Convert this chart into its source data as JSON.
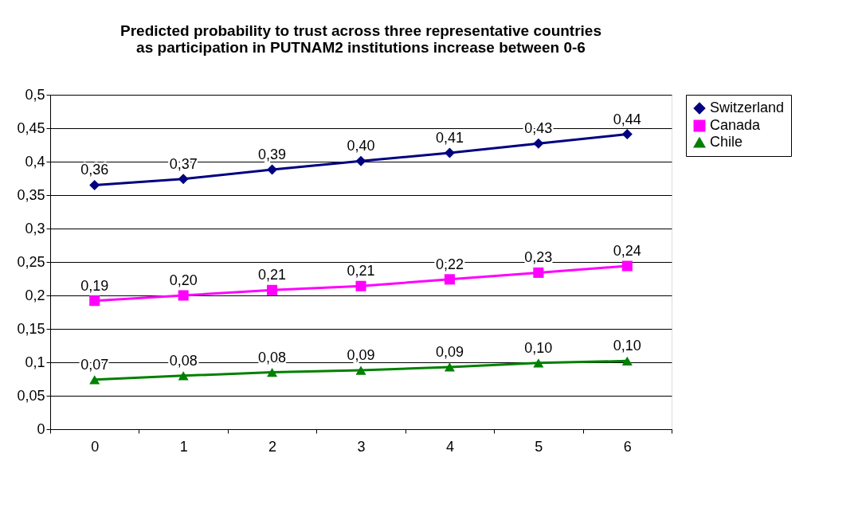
{
  "chart_data": {
    "type": "line",
    "title": "Predicted probability to trust across three representative countries\nas participation in PUTNAM2 institutions increase between 0-6",
    "categories": [
      "0",
      "1",
      "2",
      "3",
      "4",
      "5",
      "6"
    ],
    "series": [
      {
        "name": "Switzerland",
        "color": "#000080",
        "marker": "diamond",
        "values": [
          0.365,
          0.374,
          0.388,
          0.401,
          0.413,
          0.427,
          0.441
        ],
        "value_labels": [
          "0,36",
          "0,37",
          "0,39",
          "0,40",
          "0,41",
          "0,43",
          "0,44"
        ]
      },
      {
        "name": "Canada",
        "color": "#ff00ff",
        "marker": "square",
        "values": [
          0.192,
          0.2,
          0.208,
          0.214,
          0.224,
          0.234,
          0.244
        ],
        "value_labels": [
          "0,19",
          "0,20",
          "0,21",
          "0,21",
          "0,22",
          "0,23",
          "0,24"
        ]
      },
      {
        "name": "Chile",
        "color": "#008000",
        "marker": "triangle",
        "values": [
          0.074,
          0.08,
          0.085,
          0.088,
          0.093,
          0.099,
          0.102
        ],
        "value_labels": [
          "0,07",
          "0,08",
          "0,08",
          "0,09",
          "0,09",
          "0,10",
          "0,10"
        ]
      }
    ],
    "ylim": [
      0,
      0.5
    ],
    "yticks": [
      {
        "value": 0,
        "label": "0"
      },
      {
        "value": 0.05,
        "label": "0,05"
      },
      {
        "value": 0.1,
        "label": "0,1"
      },
      {
        "value": 0.15,
        "label": "0,15"
      },
      {
        "value": 0.2,
        "label": "0,2"
      },
      {
        "value": 0.25,
        "label": "0,25"
      },
      {
        "value": 0.3,
        "label": "0,3"
      },
      {
        "value": 0.35,
        "label": "0,35"
      },
      {
        "value": 0.4,
        "label": "0,4"
      },
      {
        "value": 0.45,
        "label": "0,45"
      },
      {
        "value": 0.5,
        "label": "0,5"
      }
    ],
    "grid": "y",
    "legend": "right",
    "line_style": "solid"
  }
}
